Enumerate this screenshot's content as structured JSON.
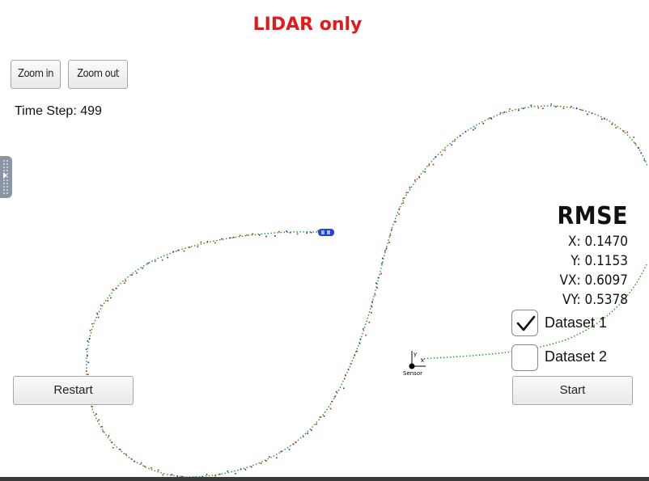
{
  "header": {
    "title": "LIDAR only",
    "title_color": "#e3191c"
  },
  "toolbar": {
    "zoom_in_label": "Zoom in",
    "zoom_out_label": "Zoom out"
  },
  "status": {
    "time_step_text": "Time Step: 499"
  },
  "rmse": {
    "heading": "RMSE",
    "x_text": "X: 0.1470",
    "y_text": "Y: 0.1153",
    "vx_text": "VX: 0.6097",
    "vy_text": "VY: 0.5378"
  },
  "datasets": [
    {
      "label": "Dataset 1",
      "checked": true
    },
    {
      "label": "Dataset 2",
      "checked": false
    }
  ],
  "controls": {
    "restart_label": "Restart",
    "start_label": "Start"
  },
  "sensor": {
    "label": "Sensor",
    "axis_x": "x",
    "axis_y": "y"
  },
  "colors": {
    "ground_truth": "#1a9a1a",
    "measurement": "#d01010",
    "estimate": "#2020d0",
    "car": "#2244dd"
  },
  "icons": {
    "checkmark": "check-icon",
    "side_panel": "panel-toggle-icon"
  }
}
